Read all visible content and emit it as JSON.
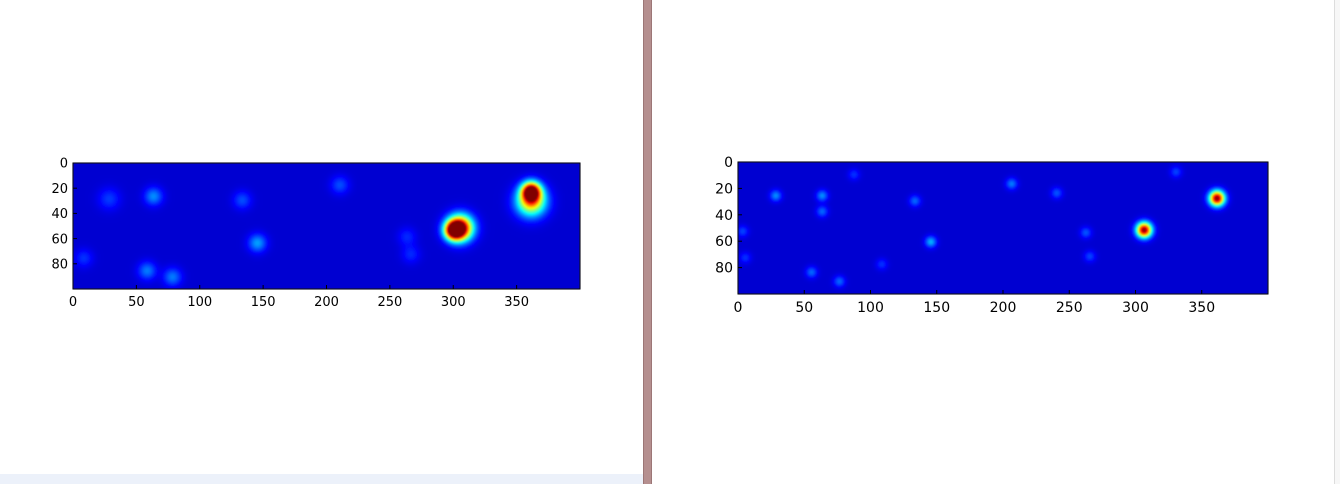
{
  "chart_data": [
    {
      "type": "heatmap",
      "colormap": "jet",
      "xlim": [
        0,
        400
      ],
      "ylim": [
        100,
        0
      ],
      "x_ticks": [
        "0",
        "50",
        "100",
        "150",
        "200",
        "250",
        "300",
        "350"
      ],
      "y_ticks": [
        "0",
        "20",
        "40",
        "60",
        "80"
      ],
      "hotspots": [
        {
          "x": 305,
          "y": 51,
          "intensity": 1.0,
          "spread": 7
        },
        {
          "x": 300,
          "y": 53,
          "intensity": 0.85,
          "spread": 5
        },
        {
          "x": 361,
          "y": 22,
          "intensity": 1.0,
          "spread": 5
        },
        {
          "x": 361,
          "y": 30,
          "intensity": 0.7,
          "spread": 8
        },
        {
          "x": 63,
          "y": 26,
          "intensity": 0.2,
          "spread": 5
        },
        {
          "x": 145,
          "y": 63,
          "intensity": 0.22,
          "spread": 5
        },
        {
          "x": 58,
          "y": 85,
          "intensity": 0.18,
          "spread": 5
        },
        {
          "x": 78,
          "y": 90,
          "intensity": 0.18,
          "spread": 5
        },
        {
          "x": 210,
          "y": 17,
          "intensity": 0.13,
          "spread": 5
        },
        {
          "x": 133,
          "y": 29,
          "intensity": 0.13,
          "spread": 5
        },
        {
          "x": 28,
          "y": 28,
          "intensity": 0.11,
          "spread": 6
        },
        {
          "x": 8,
          "y": 75,
          "intensity": 0.1,
          "spread": 5
        },
        {
          "x": 263,
          "y": 58,
          "intensity": 0.09,
          "spread": 5
        },
        {
          "x": 266,
          "y": 72,
          "intensity": 0.09,
          "spread": 5
        }
      ]
    },
    {
      "type": "heatmap",
      "colormap": "jet",
      "xlim": [
        0,
        400
      ],
      "ylim": [
        100,
        0
      ],
      "x_ticks": [
        "0",
        "50",
        "100",
        "150",
        "200",
        "250",
        "300",
        "350"
      ],
      "y_ticks": [
        "0",
        "20",
        "40",
        "60",
        "80"
      ],
      "hotspots": [
        {
          "x": 306,
          "y": 51,
          "intensity": 1.0,
          "spread": 4
        },
        {
          "x": 361,
          "y": 27,
          "intensity": 1.0,
          "spread": 4
        },
        {
          "x": 28,
          "y": 25,
          "intensity": 0.2,
          "spread": 3
        },
        {
          "x": 63,
          "y": 25,
          "intensity": 0.2,
          "spread": 3
        },
        {
          "x": 63,
          "y": 37,
          "intensity": 0.16,
          "spread": 3
        },
        {
          "x": 145,
          "y": 60,
          "intensity": 0.24,
          "spread": 3
        },
        {
          "x": 133,
          "y": 29,
          "intensity": 0.16,
          "spread": 3
        },
        {
          "x": 206,
          "y": 16,
          "intensity": 0.18,
          "spread": 3
        },
        {
          "x": 240,
          "y": 23,
          "intensity": 0.14,
          "spread": 3
        },
        {
          "x": 262,
          "y": 53,
          "intensity": 0.14,
          "spread": 3
        },
        {
          "x": 265,
          "y": 71,
          "intensity": 0.12,
          "spread": 3
        },
        {
          "x": 55,
          "y": 83,
          "intensity": 0.16,
          "spread": 3
        },
        {
          "x": 76,
          "y": 90,
          "intensity": 0.16,
          "spread": 3
        },
        {
          "x": 108,
          "y": 77,
          "intensity": 0.1,
          "spread": 3
        },
        {
          "x": 87,
          "y": 9,
          "intensity": 0.1,
          "spread": 3
        },
        {
          "x": 330,
          "y": 7,
          "intensity": 0.12,
          "spread": 3
        },
        {
          "x": 3,
          "y": 52,
          "intensity": 0.12,
          "spread": 3
        },
        {
          "x": 5,
          "y": 72,
          "intensity": 0.1,
          "spread": 3
        }
      ]
    }
  ]
}
